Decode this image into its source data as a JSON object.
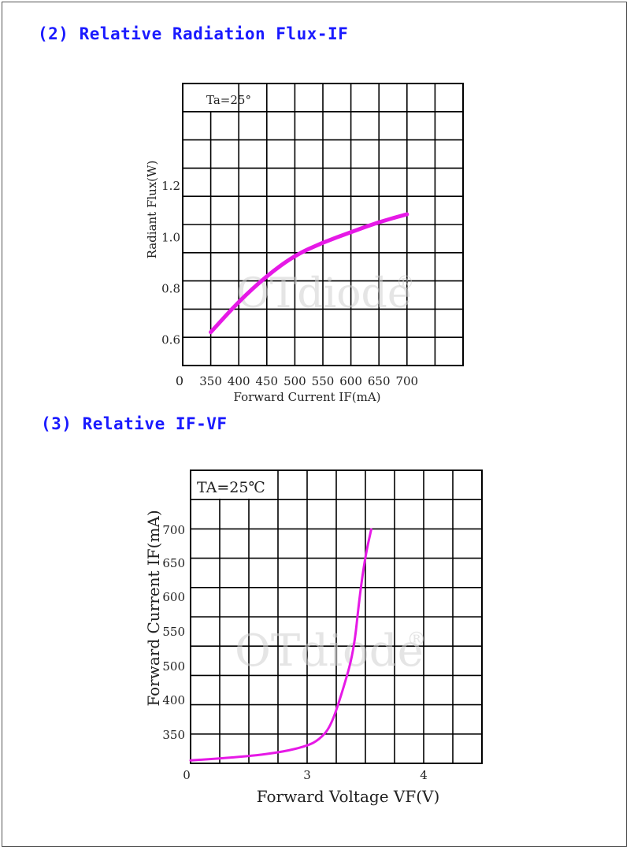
{
  "sections": [
    {
      "title": "(2) Relative Radiation Flux-IF"
    },
    {
      "title": "(3) Relative IF-VF"
    }
  ],
  "watermark": "OTdiode",
  "watermark_mark": "®",
  "curve_color": "#e619e6",
  "chart_data": [
    {
      "type": "line",
      "title": "",
      "annotation": "Ta=25°",
      "xlabel": "Forward Current IF(mA)",
      "ylabel": "Radiant Flux(W)",
      "x_ticks": [
        "350",
        "400",
        "450",
        "500",
        "550",
        "600",
        "650",
        "700"
      ],
      "x_tick_values": [
        350,
        400,
        450,
        500,
        550,
        600,
        650,
        700
      ],
      "y_ticks": [
        "0.6",
        "0.8",
        "1.0",
        "1.2"
      ],
      "y_tick_values": [
        0.6,
        0.8,
        1.0,
        1.2
      ],
      "origin_label": "0",
      "xlim": [
        300,
        800
      ],
      "ylim": [
        0.5,
        1.6
      ],
      "grid": true,
      "series": [
        {
          "x": [
            350,
            400,
            450,
            500,
            550,
            600,
            650,
            700
          ],
          "y": [
            0.63,
            0.75,
            0.85,
            0.93,
            0.98,
            1.02,
            1.06,
            1.09
          ]
        }
      ]
    },
    {
      "type": "line",
      "title": "",
      "annotation": "TA=25℃",
      "xlabel": "Forward Voltage VF(V)",
      "ylabel": "Forward Current IF(mA)",
      "x_ticks": [
        "0",
        "3",
        "4"
      ],
      "x_tick_values": [
        2,
        3,
        4
      ],
      "y_ticks": [
        "350",
        "400",
        "500",
        "550",
        "600",
        "650",
        "700"
      ],
      "y_tick_values": [
        350,
        400,
        500,
        550,
        600,
        650,
        700
      ],
      "note": "x axis starts at label 0 (broken axis); y axis spacing is non-uniform",
      "grid": true,
      "series": [
        {
          "x": [
            2.0,
            2.5,
            2.8,
            3.0,
            3.1,
            3.2,
            3.3,
            3.4,
            3.45,
            3.5,
            3.55
          ],
          "y": [
            305,
            312,
            320,
            330,
            340,
            360,
            420,
            520,
            600,
            660,
            700
          ]
        }
      ]
    }
  ]
}
